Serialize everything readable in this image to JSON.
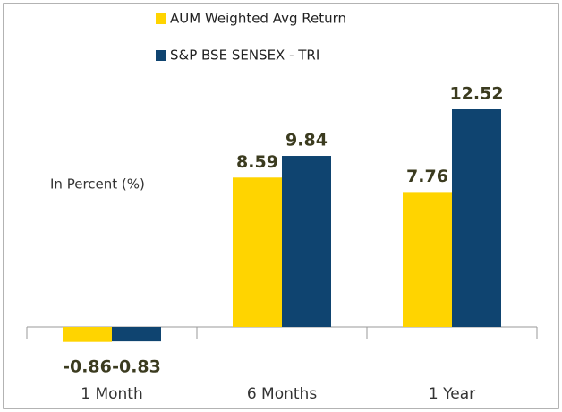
{
  "chart_data": {
    "type": "bar",
    "annotation": "In Percent (%)",
    "categories": [
      "1 Month",
      "6 Months",
      "1 Year"
    ],
    "series": [
      {
        "name": "AUM Weighted  Avg Return",
        "color": "#ffd400",
        "values": [
          -0.86,
          8.59,
          7.76
        ]
      },
      {
        "name": "S&P BSE SENSEX - TRI",
        "color": "#0f4470",
        "values": [
          -0.83,
          9.84,
          12.52
        ]
      }
    ],
    "legend": "top"
  }
}
